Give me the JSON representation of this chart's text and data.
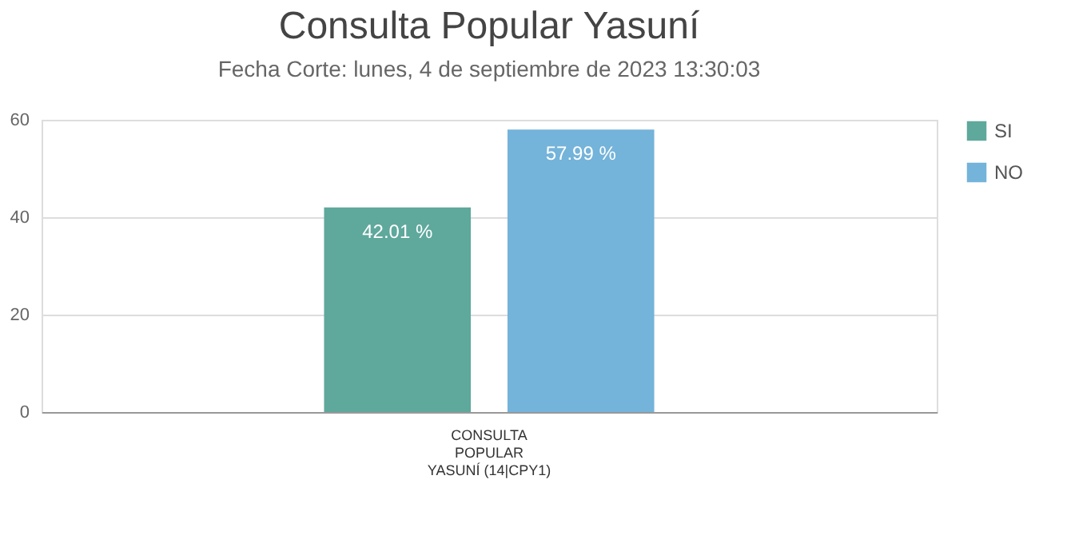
{
  "chart_data": {
    "type": "bar",
    "title": "Consulta Popular Yasuní",
    "subtitle": "Fecha Corte: lunes, 4 de septiembre de 2023 13:30:03",
    "categories": [
      "CONSULTA\nPOPULAR\nYASUNÍ (14|CPY1)"
    ],
    "series": [
      {
        "name": "SI",
        "color": "#5fa89c",
        "values": [
          42.01
        ],
        "value_labels": [
          "42.01 %"
        ]
      },
      {
        "name": "NO",
        "color": "#74b3da",
        "values": [
          57.99
        ],
        "value_labels": [
          "57.99 %"
        ]
      }
    ],
    "ylim": [
      0,
      60
    ],
    "yticks": [
      0,
      20,
      40,
      60
    ],
    "grid": "y",
    "legend": "top right"
  }
}
